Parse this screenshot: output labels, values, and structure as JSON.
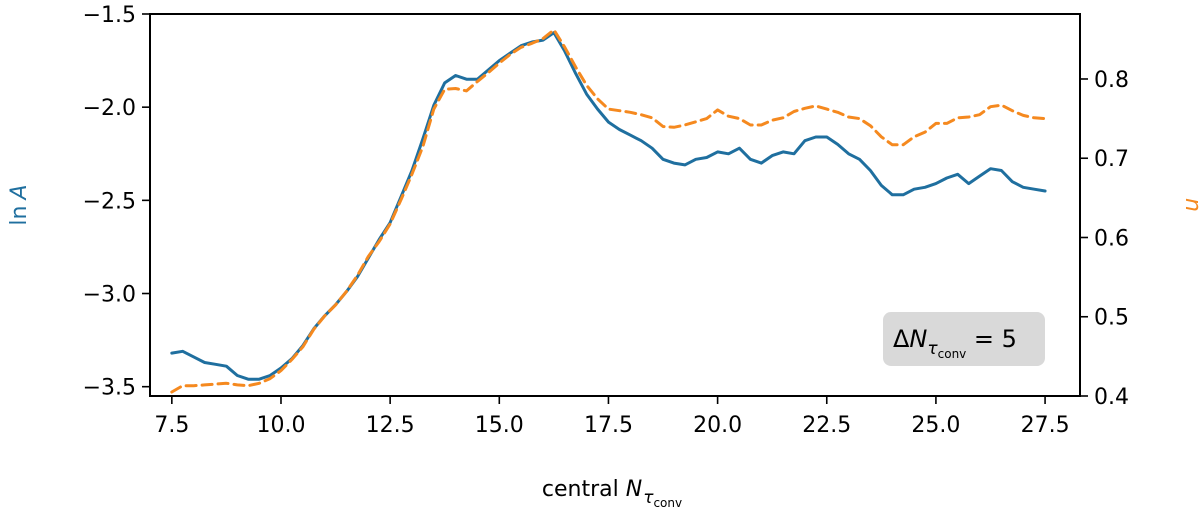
{
  "chart_data": {
    "type": "line",
    "xlabel": "central N_{τ_conv}",
    "ylabel_left": "ln A",
    "ylabel_right": "n",
    "xlim": [
      7,
      28.3
    ],
    "ylim_left": [
      -3.55,
      -1.5
    ],
    "ylim_right": [
      0.4,
      0.882
    ],
    "x_ticks": [
      7.5,
      10.0,
      12.5,
      15.0,
      17.5,
      20.0,
      22.5,
      25.0,
      27.5
    ],
    "x_tick_labels": [
      "7.5",
      "10.0",
      "12.5",
      "15.0",
      "17.5",
      "20.0",
      "22.5",
      "25.0",
      "27.5"
    ],
    "y_left_ticks": [
      -1.5,
      -2.0,
      -2.5,
      -3.0,
      -3.5
    ],
    "y_left_tick_labels": [
      "−1.5",
      "−2.0",
      "−2.5",
      "−3.0",
      "−3.5"
    ],
    "y_right_ticks": [
      0.4,
      0.5,
      0.6,
      0.7,
      0.8
    ],
    "y_right_tick_labels": [
      "0.4",
      "0.5",
      "0.6",
      "0.7",
      "0.8"
    ],
    "annotation": {
      "prefix": "Δ",
      "symbol": "N",
      "subscript": "τ",
      "subsubscript": "conv",
      "suffix": " = 5"
    },
    "series": [
      {
        "axis": "left",
        "color": "#1f6f9f",
        "style": "solid",
        "x": [
          7.5,
          7.75,
          8.0,
          8.25,
          8.5,
          8.75,
          9.0,
          9.25,
          9.5,
          9.75,
          10.0,
          10.25,
          10.5,
          10.75,
          11.0,
          11.25,
          11.5,
          11.75,
          12.0,
          12.25,
          12.5,
          12.75,
          13.0,
          13.25,
          13.5,
          13.75,
          14.0,
          14.25,
          14.5,
          14.75,
          15.0,
          15.25,
          15.5,
          15.75,
          16.0,
          16.25,
          16.5,
          16.75,
          17.0,
          17.25,
          17.5,
          17.75,
          18.0,
          18.25,
          18.5,
          18.75,
          19.0,
          19.25,
          19.5,
          19.75,
          20.0,
          20.25,
          20.5,
          20.75,
          21.0,
          21.25,
          21.5,
          21.75,
          22.0,
          22.25,
          22.5,
          22.75,
          23.0,
          23.25,
          23.5,
          23.75,
          24.0,
          24.25,
          24.5,
          24.75,
          25.0,
          25.25,
          25.5,
          25.75,
          26.0,
          26.25,
          26.5,
          26.75,
          27.0,
          27.25,
          27.5
        ],
        "y": [
          -3.32,
          -3.31,
          -3.34,
          -3.37,
          -3.38,
          -3.39,
          -3.44,
          -3.46,
          -3.46,
          -3.44,
          -3.4,
          -3.35,
          -3.28,
          -3.19,
          -3.12,
          -3.06,
          -2.99,
          -2.91,
          -2.81,
          -2.71,
          -2.62,
          -2.48,
          -2.34,
          -2.17,
          -1.99,
          -1.87,
          -1.83,
          -1.85,
          -1.85,
          -1.8,
          -1.75,
          -1.71,
          -1.67,
          -1.65,
          -1.64,
          -1.6,
          -1.7,
          -1.82,
          -1.93,
          -2.01,
          -2.08,
          -2.12,
          -2.15,
          -2.18,
          -2.22,
          -2.28,
          -2.3,
          -2.31,
          -2.28,
          -2.27,
          -2.24,
          -2.25,
          -2.22,
          -2.28,
          -2.3,
          -2.26,
          -2.24,
          -2.25,
          -2.18,
          -2.16,
          -2.16,
          -2.2,
          -2.25,
          -2.28,
          -2.34,
          -2.42,
          -2.47,
          -2.47,
          -2.44,
          -2.43,
          -2.41,
          -2.38,
          -2.36,
          -2.41,
          -2.37,
          -2.33,
          -2.34,
          -2.4,
          -2.43,
          -2.44,
          -2.45
        ]
      },
      {
        "axis": "right",
        "color": "#f5891f",
        "style": "dashed",
        "x": [
          7.5,
          7.75,
          8.0,
          8.25,
          8.5,
          8.75,
          9.0,
          9.25,
          9.5,
          9.75,
          10.0,
          10.25,
          10.5,
          10.75,
          11.0,
          11.25,
          11.5,
          11.75,
          12.0,
          12.25,
          12.5,
          12.75,
          13.0,
          13.25,
          13.5,
          13.75,
          14.0,
          14.25,
          14.5,
          14.75,
          15.0,
          15.25,
          15.5,
          15.75,
          16.0,
          16.25,
          16.5,
          16.75,
          17.0,
          17.25,
          17.5,
          17.75,
          18.0,
          18.25,
          18.5,
          18.75,
          19.0,
          19.25,
          19.5,
          19.75,
          20.0,
          20.25,
          20.5,
          20.75,
          21.0,
          21.25,
          21.5,
          21.75,
          22.0,
          22.25,
          22.5,
          22.75,
          23.0,
          23.25,
          23.5,
          23.75,
          24.0,
          24.25,
          24.5,
          24.75,
          25.0,
          25.25,
          25.5,
          25.75,
          26.0,
          26.25,
          26.5,
          26.75,
          27.0,
          27.25,
          27.5
        ],
        "y": [
          0.405,
          0.413,
          0.413,
          0.414,
          0.415,
          0.416,
          0.414,
          0.413,
          0.416,
          0.422,
          0.432,
          0.446,
          0.462,
          0.484,
          0.501,
          0.515,
          0.532,
          0.552,
          0.576,
          0.595,
          0.617,
          0.648,
          0.68,
          0.715,
          0.762,
          0.787,
          0.788,
          0.785,
          0.797,
          0.808,
          0.82,
          0.831,
          0.84,
          0.845,
          0.851,
          0.862,
          0.84,
          0.815,
          0.792,
          0.775,
          0.762,
          0.76,
          0.758,
          0.755,
          0.751,
          0.74,
          0.739,
          0.742,
          0.746,
          0.75,
          0.761,
          0.753,
          0.75,
          0.742,
          0.742,
          0.748,
          0.751,
          0.759,
          0.763,
          0.766,
          0.762,
          0.758,
          0.752,
          0.75,
          0.741,
          0.727,
          0.717,
          0.717,
          0.727,
          0.733,
          0.744,
          0.744,
          0.751,
          0.752,
          0.755,
          0.765,
          0.767,
          0.76,
          0.754,
          0.751,
          0.75
        ]
      }
    ]
  }
}
